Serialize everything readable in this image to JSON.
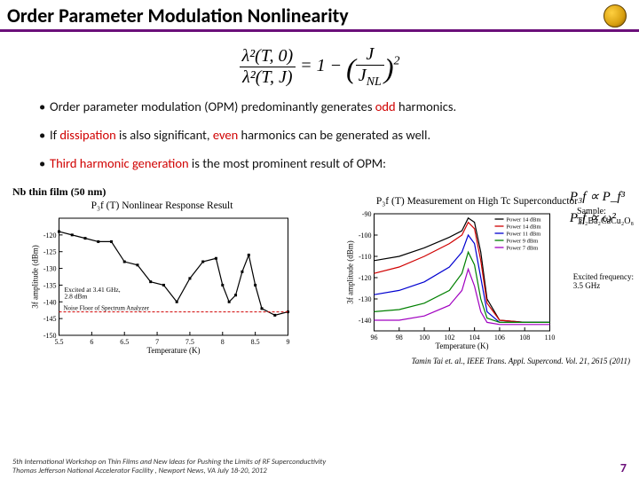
{
  "title": "Order Parameter Modulation Nonlinearity",
  "title_underline_color": "#6b0f7a",
  "formula": {
    "lhs_num": "λ²(T, 0)",
    "lhs_den": "λ²(T, J)",
    "rhs_prefix": "= 1 −",
    "rhs_inner_num": "J",
    "rhs_inner_den": "J_NL",
    "rhs_power": "2"
  },
  "bullets": [
    {
      "plain_a": "Order parameter modulation (OPM) predominantly generates ",
      "red": "odd",
      "plain_b": " harmonics."
    },
    {
      "plain_a": "If ",
      "red": "dissipation",
      "plain_b": " is also significant, ",
      "red2": "even",
      "plain_c": " harmonics can be generated as well."
    },
    {
      "red_full": "Third harmonic generation",
      "plain_b": " is the most prominent result of OPM:"
    }
  ],
  "side_equations": {
    "line1_lhs": "P₃f",
    "line1_rhs": "∝ P_f³",
    "line2_lhs": "P₃f",
    "line2_rhs": "∝ ω²"
  },
  "chart_left": {
    "caption": "Nb thin film (50 nm)",
    "title": "P₃f (T) Nonlinear Response Result",
    "xlabel": "Temperature (K)",
    "ylabel": "3f amplitude (dBm)",
    "xlim": [
      5.5,
      9.0
    ],
    "xticks": [
      5.5,
      6.0,
      6.5,
      7.0,
      7.5,
      8.0,
      8.5,
      9.0
    ],
    "ylim": [
      -150,
      -115
    ],
    "yticks": [
      -150,
      -145,
      -140,
      -135,
      -130,
      -125,
      -120
    ],
    "series": {
      "color": "#000000",
      "points": [
        [
          5.5,
          -119
        ],
        [
          5.7,
          -120
        ],
        [
          5.9,
          -121
        ],
        [
          6.1,
          -122
        ],
        [
          6.3,
          -122
        ],
        [
          6.5,
          -128
        ],
        [
          6.7,
          -129
        ],
        [
          6.9,
          -134
        ],
        [
          7.1,
          -135
        ],
        [
          7.3,
          -140
        ],
        [
          7.5,
          -133
        ],
        [
          7.7,
          -128
        ],
        [
          7.9,
          -127
        ],
        [
          8.0,
          -135
        ],
        [
          8.1,
          -140
        ],
        [
          8.2,
          -138
        ],
        [
          8.3,
          -131
        ],
        [
          8.4,
          -126
        ],
        [
          8.5,
          -135
        ],
        [
          8.6,
          -142
        ],
        [
          8.8,
          -144
        ],
        [
          9.0,
          -143
        ]
      ]
    },
    "noise_floor": {
      "y": -143,
      "color": "#d00000",
      "label": "Noise Floor of Spectrum Analyzer"
    },
    "excite_label": "Excited at 3.41 GHz,\n2.8 dBm"
  },
  "chart_right": {
    "title": "P₃f (T) Measurement on High Tc Superconductor",
    "xlabel": "Temperature (K)",
    "ylabel": "3f amplitude (dBm)",
    "xlim": [
      96,
      110
    ],
    "xticks": [
      96,
      98,
      100,
      102,
      104,
      106,
      108,
      110
    ],
    "ylim": [
      -145,
      -90
    ],
    "yticks": [
      -140,
      -130,
      -120,
      -110,
      -100,
      -90
    ],
    "sample_label": "Sample:\nTl₂Ba₂CaCu₂O₈",
    "excite_label": "Excited frequency:\n3.5 GHz",
    "legend": [
      {
        "label": "Power 14 dBm",
        "color": "#000000"
      },
      {
        "label": "Power 14 dBm",
        "color": "#d00000"
      },
      {
        "label": "Power 11 dBm",
        "color": "#0000d0"
      },
      {
        "label": "Power 9 dBm",
        "color": "#008000"
      },
      {
        "label": "Power 7 dBm",
        "color": "#a000c0"
      }
    ],
    "series": [
      {
        "color": "#000000",
        "points": [
          [
            96,
            -112
          ],
          [
            98,
            -110
          ],
          [
            100,
            -106
          ],
          [
            102,
            -101
          ],
          [
            103,
            -98
          ],
          [
            103.5,
            -92
          ],
          [
            104,
            -94
          ],
          [
            104.5,
            -108
          ],
          [
            105,
            -130
          ],
          [
            106,
            -140
          ],
          [
            108,
            -141
          ],
          [
            110,
            -141
          ]
        ]
      },
      {
        "color": "#d00000",
        "points": [
          [
            96,
            -118
          ],
          [
            98,
            -115
          ],
          [
            100,
            -110
          ],
          [
            102,
            -104
          ],
          [
            103,
            -100
          ],
          [
            103.5,
            -94
          ],
          [
            104,
            -97
          ],
          [
            104.5,
            -112
          ],
          [
            105,
            -132
          ],
          [
            106,
            -140
          ],
          [
            108,
            -141
          ],
          [
            110,
            -141
          ]
        ]
      },
      {
        "color": "#0000d0",
        "points": [
          [
            96,
            -128
          ],
          [
            98,
            -126
          ],
          [
            100,
            -122
          ],
          [
            102,
            -115
          ],
          [
            103,
            -108
          ],
          [
            103.5,
            -100
          ],
          [
            104,
            -104
          ],
          [
            104.5,
            -120
          ],
          [
            105,
            -136
          ],
          [
            106,
            -141
          ],
          [
            108,
            -141
          ],
          [
            110,
            -141
          ]
        ]
      },
      {
        "color": "#008000",
        "points": [
          [
            96,
            -136
          ],
          [
            98,
            -135
          ],
          [
            100,
            -132
          ],
          [
            102,
            -126
          ],
          [
            103,
            -118
          ],
          [
            103.5,
            -108
          ],
          [
            104,
            -114
          ],
          [
            104.5,
            -130
          ],
          [
            105,
            -139
          ],
          [
            106,
            -141
          ],
          [
            108,
            -141
          ],
          [
            110,
            -141
          ]
        ]
      },
      {
        "color": "#a000c0",
        "points": [
          [
            96,
            -140
          ],
          [
            98,
            -140
          ],
          [
            100,
            -138
          ],
          [
            102,
            -133
          ],
          [
            103,
            -126
          ],
          [
            103.5,
            -116
          ],
          [
            104,
            -124
          ],
          [
            104.5,
            -136
          ],
          [
            105,
            -141
          ],
          [
            106,
            -142
          ],
          [
            108,
            -142
          ],
          [
            110,
            -142
          ]
        ]
      }
    ]
  },
  "citation": "Tamin Tai et. al., IEEE Trans. Appl. Supercond. Vol. 21, 2615 (2011)",
  "footer": {
    "line1": "5th International Workshop on Thin Films and New Ideas for Pushing the Limits of RF Superconductivity",
    "line2": "Thomas Jefferson National Accelerator Facility , Newport News, VA     July 18-20, 2012",
    "page": "7"
  }
}
